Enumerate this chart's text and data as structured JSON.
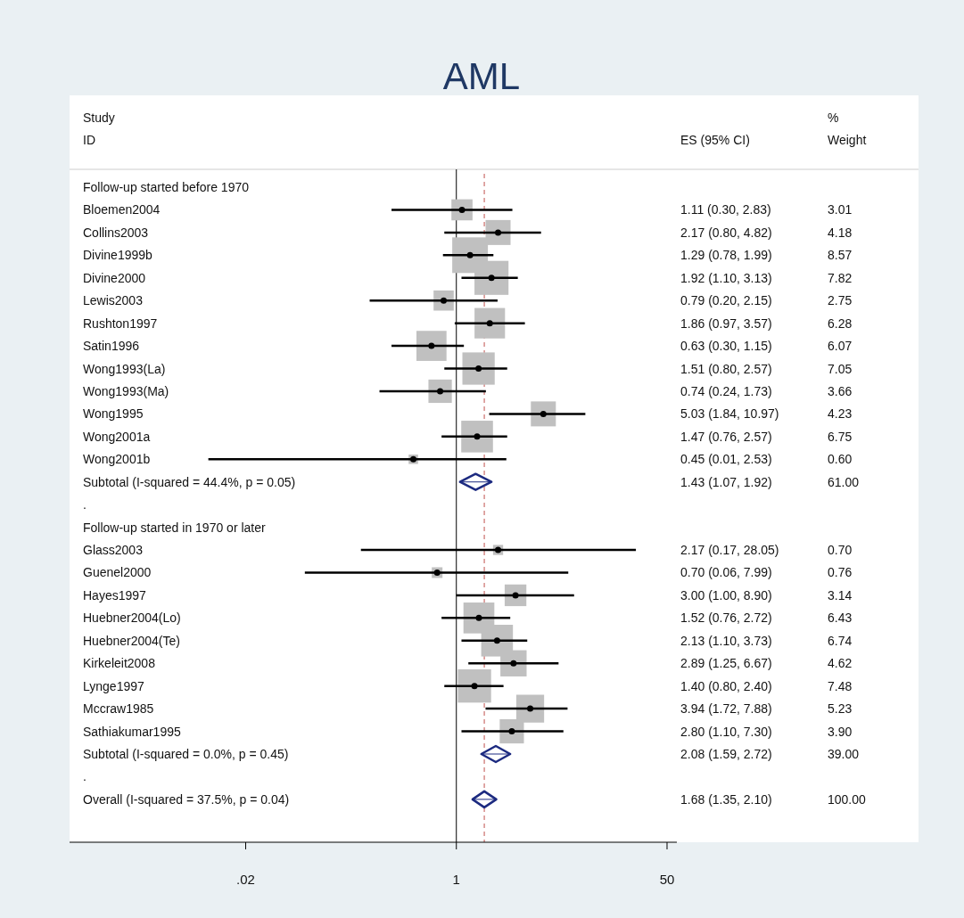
{
  "chart_data": {
    "type": "scatter",
    "title": "AML",
    "orientation": "horizontal",
    "categories": [
      "Follow-up started before 1970",
      "Bloemen2004",
      "Collins2003",
      "Divine1999b",
      "Divine2000",
      "Lewis2003",
      "Rushton1997",
      "Satin1996",
      "Wong1993(La)",
      "Wong1993(Ma)",
      "Wong1995",
      "Wong2001a",
      "Wong2001b",
      "Subtotal  (I-squared = 44.4%, p = 0.05)",
      ".",
      "Follow-up started in 1970 or later",
      "Glass2003",
      "Guenel2000",
      "Hayes1997",
      "Huebner2004(Lo)",
      "Huebner2004(Te)",
      "Kirkeleit2008",
      "Lynge1997",
      "Mccraw1985",
      "Sathiakumar1995",
      "Subtotal  (I-squared = 0.0%, p = 0.45)",
      ".",
      "Overall  (I-squared = 37.5%, p = 0.04)"
    ],
    "series": [
      {
        "type": "bubble",
        "marker": "square",
        "color": "#c0c0c0",
        "values": [
          null,
          1.11,
          2.17,
          1.29,
          1.92,
          0.79,
          1.86,
          0.63,
          1.51,
          0.74,
          5.03,
          1.47,
          0.45,
          null,
          null,
          null,
          2.17,
          0.7,
          3.0,
          1.52,
          2.13,
          2.89,
          1.4,
          3.94,
          2.8,
          null,
          null,
          null
        ],
        "sizes": [
          null,
          0.35,
          0.49,
          1,
          0.91,
          0.32,
          0.73,
          0.71,
          0.82,
          0.43,
          0.49,
          0.79,
          0.07,
          null,
          null,
          null,
          0.08,
          0.09,
          0.37,
          0.75,
          0.79,
          0.54,
          0.87,
          0.61,
          0.46,
          null,
          null,
          null
        ]
      },
      {
        "marker": "circle",
        "color": "#000000",
        "values": [
          null,
          1.11,
          2.17,
          1.29,
          1.92,
          0.79,
          1.86,
          0.63,
          1.51,
          0.74,
          5.03,
          1.47,
          0.45,
          null,
          null,
          null,
          2.17,
          0.7,
          3.0,
          1.52,
          2.13,
          2.89,
          1.4,
          3.94,
          2.8,
          null,
          null,
          null
        ],
        "errors": [
          null,
          [
            0.3,
            2.83
          ],
          [
            0.8,
            4.82
          ],
          [
            0.78,
            1.99
          ],
          [
            1.1,
            3.13
          ],
          [
            0.2,
            2.15
          ],
          [
            0.97,
            3.57
          ],
          [
            0.3,
            1.15
          ],
          [
            0.8,
            2.57
          ],
          [
            0.24,
            1.73
          ],
          [
            1.84,
            10.97
          ],
          [
            0.76,
            2.57
          ],
          [
            0.01,
            2.53
          ],
          null,
          null,
          null,
          [
            0.17,
            28.05
          ],
          [
            0.06,
            7.99
          ],
          [
            1.0,
            8.9
          ],
          [
            0.76,
            2.72
          ],
          [
            1.1,
            3.73
          ],
          [
            1.25,
            6.67
          ],
          [
            0.8,
            2.4
          ],
          [
            1.72,
            7.88
          ],
          [
            1.1,
            7.3
          ],
          null,
          null,
          null
        ]
      },
      {
        "marker": "diamond",
        "color": "#1c2a80",
        "values": [
          null,
          null,
          null,
          null,
          null,
          null,
          null,
          null,
          null,
          null,
          null,
          null,
          null,
          1.43,
          null,
          null,
          null,
          null,
          null,
          null,
          null,
          null,
          null,
          null,
          null,
          2.08,
          null,
          1.68
        ],
        "errors": [
          null,
          null,
          null,
          null,
          null,
          null,
          null,
          null,
          null,
          null,
          null,
          null,
          null,
          [
            1.07,
            1.92
          ],
          null,
          null,
          null,
          null,
          null,
          null,
          null,
          null,
          null,
          null,
          null,
          [
            1.59,
            2.72
          ],
          null,
          [
            1.35,
            2.1
          ]
        ]
      }
    ],
    "xlim": [
      0.00076,
      60
    ],
    "xticks": [
      {
        "value": 0.02,
        "label": ".02"
      },
      1,
      50
    ],
    "log": "x",
    "grid": false,
    "ref_lines": [
      {
        "axis": "x",
        "value": 1,
        "color": "#000000",
        "line_style": "solid"
      },
      {
        "axis": "x",
        "value": 1.68,
        "color": "#c0504d",
        "line_style": "dashed"
      }
    ],
    "annotations": [
      "Study",
      "ID",
      "ES (95% CI)",
      "%",
      "Weight",
      "1.11 (0.30, 2.83)",
      "2.17 (0.80, 4.82)",
      "1.29 (0.78, 1.99)",
      "1.92 (1.10, 3.13)",
      "0.79 (0.20, 2.15)",
      "1.86 (0.97, 3.57)",
      "0.63 (0.30, 1.15)",
      "1.51 (0.80, 2.57)",
      "0.74 (0.24, 1.73)",
      "5.03 (1.84, 10.97)",
      "1.47 (0.76, 2.57)",
      "0.45 (0.01, 2.53)",
      "1.43 (1.07, 1.92)",
      "2.17 (0.17, 28.05)",
      "0.70 (0.06, 7.99)",
      "3.00 (1.00, 8.90)",
      "1.52 (0.76, 2.72)",
      "2.13 (1.10, 3.73)",
      "2.89 (1.25, 6.67)",
      "1.40 (0.80, 2.40)",
      "3.94 (1.72, 7.88)",
      "2.80 (1.10, 7.30)",
      "2.08 (1.59, 2.72)",
      "1.68 (1.35, 2.10)",
      "3.01",
      "4.18",
      "8.57",
      "7.82",
      "2.75",
      "6.28",
      "6.07",
      "7.05",
      "3.66",
      "4.23",
      "6.75",
      "0.60",
      "61.00",
      "0.70",
      "0.76",
      "3.14",
      "6.43",
      "6.74",
      "4.62",
      "7.48",
      "5.23",
      "3.90",
      "39.00",
      "100.00"
    ]
  }
}
